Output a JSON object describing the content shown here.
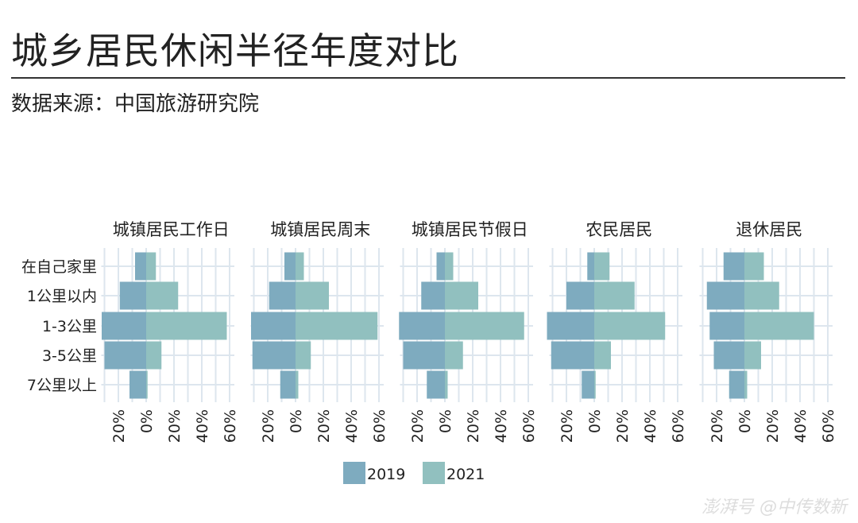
{
  "title": "城乡居民休闲半径年度对比",
  "subtitle": "数据来源：中国旅游研究院",
  "watermark": "澎湃号 @中传数新",
  "colors": {
    "2019": "#7eabbf",
    "2021": "#91c0bf",
    "grid": "#dde6ee"
  },
  "chart_data": {
    "type": "bar",
    "orientation": "horizontal-diverging",
    "categories": [
      "在自己家里",
      "1公里以内",
      "1-3公里",
      "3-5公里",
      "7公里以上"
    ],
    "xlim": [
      -30,
      60
    ],
    "tick_values": [
      -20,
      0,
      20,
      40,
      60
    ],
    "tick_labels": [
      "20%",
      "0%",
      "20%",
      "40%",
      "60%"
    ],
    "legend": {
      "position": "bottom",
      "entries": [
        "2019",
        "2021"
      ]
    },
    "panels": [
      {
        "title": "城镇居民工作日",
        "series": [
          {
            "name": "2019",
            "values": [
              8,
              19,
              32,
              30,
              12
            ]
          },
          {
            "name": "2021",
            "values": [
              7,
              23,
              58,
              11,
              1
            ]
          }
        ]
      },
      {
        "title": "城镇居民周末",
        "series": [
          {
            "name": "2019",
            "values": [
              8,
              19,
              32,
              31,
              11
            ]
          },
          {
            "name": "2021",
            "values": [
              6,
              24,
              59,
              11,
              2
            ]
          }
        ]
      },
      {
        "title": "城镇居民节假日",
        "series": [
          {
            "name": "2019",
            "values": [
              6,
              17,
              33,
              30,
              13
            ]
          },
          {
            "name": "2021",
            "values": [
              6,
              24,
              57,
              13,
              2
            ]
          }
        ]
      },
      {
        "title": "农民居民",
        "series": [
          {
            "name": "2019",
            "values": [
              5,
              20,
              34,
              31,
              9
            ]
          },
          {
            "name": "2021",
            "values": [
              11,
              29,
              51,
              12,
              1
            ]
          }
        ]
      },
      {
        "title": "退休居民",
        "series": [
          {
            "name": "2019",
            "values": [
              15,
              27,
              25,
              22,
              11
            ]
          },
          {
            "name": "2021",
            "values": [
              14,
              25,
              50,
              12,
              2
            ]
          }
        ]
      }
    ]
  }
}
